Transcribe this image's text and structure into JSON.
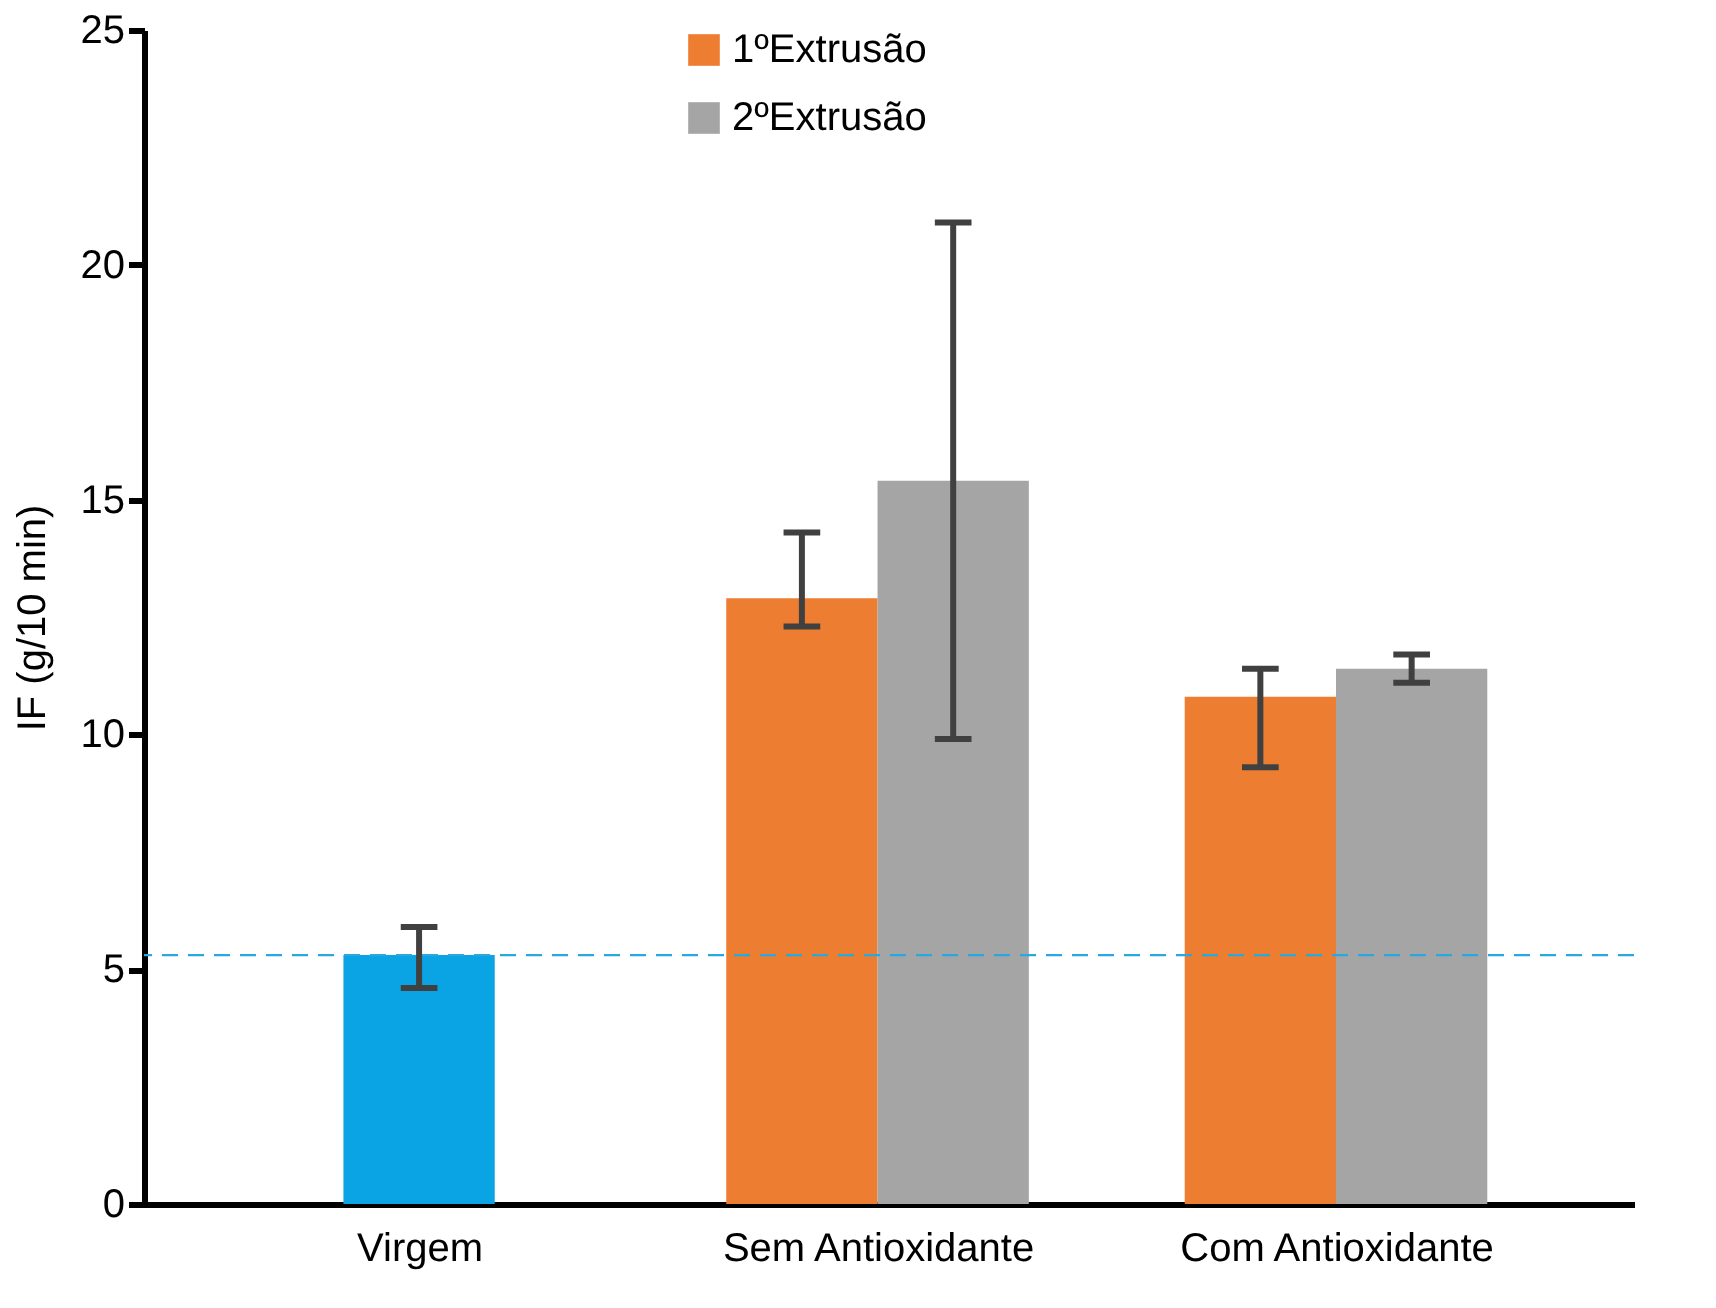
{
  "chart_data": {
    "type": "bar",
    "ylabel": "IF (g/10 min)",
    "categories": [
      "Virgem",
      "Sem Antioxidante",
      "Com Antioxidante"
    ],
    "series": [
      {
        "color": "#0aa3e3",
        "values": [
          5.3,
          null,
          null
        ],
        "errors": [
          [
            4.6,
            5.9
          ],
          null,
          null
        ]
      },
      {
        "name": "1ºExtrusão",
        "color": "#ed7d31",
        "values": [
          null,
          12.9,
          10.8
        ],
        "errors": [
          null,
          [
            12.3,
            14.3
          ],
          [
            9.3,
            11.4
          ]
        ]
      },
      {
        "name": "2ºExtrusão",
        "color": "#a5a5a5",
        "values": [
          null,
          15.4,
          11.4
        ],
        "errors": [
          null,
          [
            9.9,
            20.9
          ],
          [
            11.1,
            11.7
          ]
        ]
      }
    ],
    "ylim": [
      0,
      25
    ],
    "yticks": [
      0,
      5,
      10,
      15,
      20,
      25
    ],
    "grid": false,
    "legend": "top",
    "ref_lines": [
      {
        "axis": "y",
        "value": 5.3,
        "color": "#29a8e0",
        "line_style": "dashed"
      }
    ]
  }
}
